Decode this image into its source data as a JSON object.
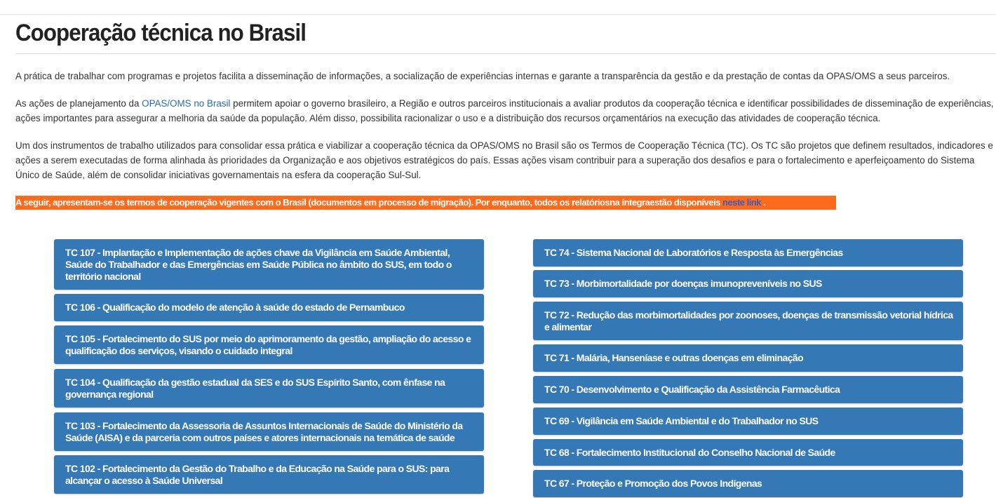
{
  "title": "Cooperação técnica no Brasil",
  "p1": "A prática de trabalhar com programas e projetos facilita a disseminação de informações, a socialização de experiências internas e garante a transparência da gestão e da prestação de contas da OPAS/OMS a seus parceiros.",
  "p2_pre": "As ações de planejamento da ",
  "p2_link": "OPAS/OMS no Brasil",
  "p2_post": " permitem apoiar o governo brasileiro, a Região e outros parceiros institucionais a avaliar produtos da cooperação técnica e identificar possibilidades de disseminação de experiências, ações importantes para assegurar a melhoria da saúde da população. Além disso, possibilita racionalizar o uso e a distribuição dos recursos orçamentários na execução das atividades de cooperação técnica.",
  "p3": "Um dos instrumentos de trabalho utilizados para consolidar essa prática e viabilizar a cooperação técnica da OPAS/OMS no Brasil são os Termos de Cooperação Técnica (TC). Os TC são projetos que definem resultados, indicadores e ações a serem executadas de forma alinhada às prioridades da Organização e aos objetivos estratégicos do país. Essas ações visam contribuir para a superação dos desafios e para o fortalecimento e aperfeiçoamento do Sistema Único de Saúde, além de consolidar iniciativas governamentais na esfera da cooperação Sul-Sul.",
  "notice": {
    "text": "A seguir, apresentam-se os termos de cooperação vigentes com o Brasil (documentos em processo de migração). Por enquanto, todos os relatóriosna íntegraestão disponíveis ",
    "link": "neste link",
    "end": "."
  },
  "left": [
    "TC 107 - Implantação e Implementação de ações chave da Vigilância em Saúde Ambiental, Saúde do Trabalhador e das Emergências em Saúde Pública no âmbito do SUS, em todo o território nacional",
    "TC 106 - Qualificação do modelo de atenção à saúde do estado de Pernambuco",
    "TC 105 - Fortalecimento do SUS por meio do aprimoramento da gestão, ampliação do acesso e qualificação dos serviços, visando o cuidado integral",
    "TC 104 - Qualificação da gestão estadual da SES e do SUS Espírito Santo, com ênfase na governança regional",
    "TC 103 - Fortalecimento da Assessoria de Assuntos Internacionais de Saúde do Ministério da Saúde (AISA) e da parceria com outros países e atores internacionais na temática de saúde",
    "TC 102 - Fortalecimento da Gestão do Trabalho e da Educação na Saúde para o SUS: para alcançar o acesso à Saúde Universal"
  ],
  "right": [
    "TC 74 - Sistema Nacional de Laboratórios e Resposta às Emergências",
    "TC 73 - Morbimortalidade por doenças imunopreveníveis no SUS",
    "TC 72 - Redução das morbimortalidades por zoonoses, doenças de transmissão vetorial hídrica e alimentar",
    "TC 71 - Malária, Hanseníase e outras doenças em eliminação",
    "TC 70 - Desenvolvimento e Qualificação da Assistência Farmacêutica",
    "TC 69 - Vigilância em Saúde Ambiental e do Trabalhador no SUS",
    "TC 68 - Fortalecimento Institucional do Conselho Nacional de Saúde",
    "TC 67 - Proteção e Promoção dos Povos Indígenas"
  ],
  "colors": {
    "button": "#3578b6",
    "notice": "#ff6a1c",
    "link": "#2a6ab3"
  }
}
